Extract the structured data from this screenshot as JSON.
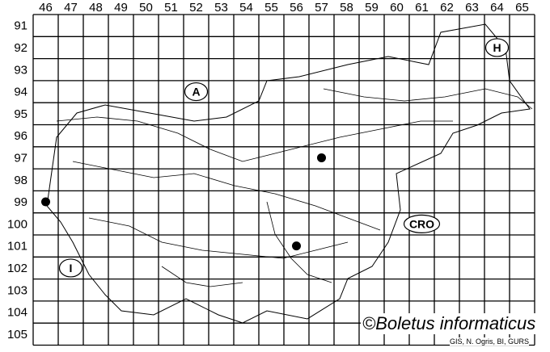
{
  "map": {
    "columns": [
      "46",
      "47",
      "48",
      "49",
      "50",
      "51",
      "52",
      "53",
      "54",
      "55",
      "56",
      "57",
      "58",
      "59",
      "60",
      "61",
      "62",
      "63",
      "64",
      "65"
    ],
    "rows": [
      "91",
      "92",
      "93",
      "94",
      "95",
      "96",
      "97",
      "98",
      "99",
      "100",
      "101",
      "102",
      "103",
      "104",
      "105"
    ],
    "records": [
      {
        "col": 57,
        "row": 97
      },
      {
        "col": 46,
        "row": 99
      },
      {
        "col": 56,
        "row": 101
      }
    ],
    "country_labels": [
      {
        "text": "A",
        "col": 52,
        "row": 94
      },
      {
        "text": "H",
        "col": 64,
        "row": 92
      },
      {
        "text": "CRO",
        "col": 61,
        "row": 100
      },
      {
        "text": "I",
        "col": 47,
        "row": 102
      }
    ],
    "colors": {
      "lines": "#000000",
      "points": "#000000",
      "background": "#ffffff"
    }
  },
  "credit": "©Boletus informaticus",
  "source": "GIS, N. Ogris, BI, GURS"
}
